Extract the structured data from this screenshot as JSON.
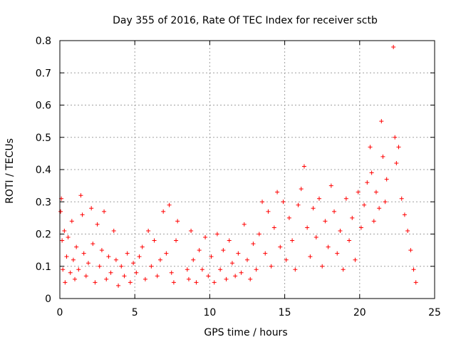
{
  "chart_data": {
    "type": "scatter",
    "title": "Day 355 of 2016, Rate Of TEC Index for receiver sctb",
    "xlabel": "GPS time / hours",
    "ylabel": "ROTI / TECUs",
    "xlim": [
      0,
      25
    ],
    "ylim": [
      0,
      0.8
    ],
    "xticks": [
      0,
      5,
      10,
      15,
      20,
      25
    ],
    "xtick_labels": [
      "0",
      "5",
      "10",
      "15",
      "20",
      "25"
    ],
    "yticks": [
      0,
      0.1,
      0.2,
      0.3,
      0.4,
      0.5,
      0.6,
      0.7,
      0.8
    ],
    "ytick_labels": [
      "0",
      "0.1",
      "0.2",
      "0.3",
      "0.4",
      "0.5",
      "0.6",
      "0.7",
      "0.8"
    ],
    "grid": true,
    "marker": "plus",
    "color": "#ff0000",
    "series": [
      {
        "name": "ROTI",
        "points": [
          [
            0.05,
            0.27
          ],
          [
            0.1,
            0.31
          ],
          [
            0.15,
            0.18
          ],
          [
            0.2,
            0.09
          ],
          [
            0.3,
            0.21
          ],
          [
            0.35,
            0.05
          ],
          [
            0.45,
            0.13
          ],
          [
            0.55,
            0.19
          ],
          [
            0.7,
            0.08
          ],
          [
            0.8,
            0.24
          ],
          [
            0.9,
            0.12
          ],
          [
            1.0,
            0.06
          ],
          [
            1.1,
            0.16
          ],
          [
            1.25,
            0.09
          ],
          [
            1.4,
            0.32
          ],
          [
            1.5,
            0.26
          ],
          [
            1.6,
            0.14
          ],
          [
            1.75,
            0.07
          ],
          [
            1.9,
            0.11
          ],
          [
            2.1,
            0.28
          ],
          [
            2.2,
            0.17
          ],
          [
            2.35,
            0.05
          ],
          [
            2.5,
            0.23
          ],
          [
            2.65,
            0.1
          ],
          [
            2.8,
            0.15
          ],
          [
            2.95,
            0.27
          ],
          [
            3.1,
            0.06
          ],
          [
            3.25,
            0.13
          ],
          [
            3.4,
            0.08
          ],
          [
            3.6,
            0.21
          ],
          [
            3.75,
            0.12
          ],
          [
            3.9,
            0.04
          ],
          [
            4.1,
            0.1
          ],
          [
            4.3,
            0.07
          ],
          [
            4.5,
            0.14
          ],
          [
            4.7,
            0.05
          ],
          [
            4.9,
            0.11
          ],
          [
            5.1,
            0.08
          ],
          [
            5.3,
            0.13
          ],
          [
            5.5,
            0.16
          ],
          [
            5.7,
            0.06
          ],
          [
            5.9,
            0.21
          ],
          [
            6.1,
            0.1
          ],
          [
            6.3,
            0.18
          ],
          [
            6.5,
            0.07
          ],
          [
            6.7,
            0.12
          ],
          [
            6.9,
            0.27
          ],
          [
            7.1,
            0.14
          ],
          [
            7.3,
            0.29
          ],
          [
            7.45,
            0.08
          ],
          [
            7.6,
            0.05
          ],
          [
            7.75,
            0.18
          ],
          [
            7.85,
            0.24
          ],
          [
            8.5,
            0.09
          ],
          [
            8.6,
            0.06
          ],
          [
            8.75,
            0.21
          ],
          [
            8.9,
            0.12
          ],
          [
            9.1,
            0.05
          ],
          [
            9.3,
            0.15
          ],
          [
            9.5,
            0.09
          ],
          [
            9.7,
            0.19
          ],
          [
            9.9,
            0.07
          ],
          [
            10.1,
            0.13
          ],
          [
            10.3,
            0.05
          ],
          [
            10.5,
            0.2
          ],
          [
            10.7,
            0.09
          ],
          [
            10.9,
            0.15
          ],
          [
            11.1,
            0.06
          ],
          [
            11.3,
            0.18
          ],
          [
            11.5,
            0.11
          ],
          [
            11.7,
            0.07
          ],
          [
            11.9,
            0.14
          ],
          [
            12.1,
            0.08
          ],
          [
            12.3,
            0.23
          ],
          [
            12.5,
            0.12
          ],
          [
            12.7,
            0.06
          ],
          [
            12.9,
            0.17
          ],
          [
            13.1,
            0.09
          ],
          [
            13.3,
            0.2
          ],
          [
            13.5,
            0.3
          ],
          [
            13.7,
            0.14
          ],
          [
            13.9,
            0.27
          ],
          [
            14.1,
            0.1
          ],
          [
            14.3,
            0.22
          ],
          [
            14.5,
            0.33
          ],
          [
            14.7,
            0.16
          ],
          [
            14.9,
            0.3
          ],
          [
            15.1,
            0.12
          ],
          [
            15.3,
            0.25
          ],
          [
            15.5,
            0.18
          ],
          [
            15.7,
            0.09
          ],
          [
            15.9,
            0.29
          ],
          [
            16.1,
            0.34
          ],
          [
            16.3,
            0.41
          ],
          [
            16.5,
            0.22
          ],
          [
            16.7,
            0.13
          ],
          [
            16.9,
            0.28
          ],
          [
            17.1,
            0.19
          ],
          [
            17.3,
            0.31
          ],
          [
            17.5,
            0.1
          ],
          [
            17.7,
            0.24
          ],
          [
            17.9,
            0.16
          ],
          [
            18.1,
            0.35
          ],
          [
            18.3,
            0.27
          ],
          [
            18.5,
            0.14
          ],
          [
            18.7,
            0.21
          ],
          [
            18.9,
            0.09
          ],
          [
            19.1,
            0.31
          ],
          [
            19.3,
            0.18
          ],
          [
            19.5,
            0.25
          ],
          [
            19.7,
            0.12
          ],
          [
            19.9,
            0.33
          ],
          [
            20.1,
            0.22
          ],
          [
            20.3,
            0.29
          ],
          [
            20.5,
            0.36
          ],
          [
            20.7,
            0.47
          ],
          [
            20.8,
            0.39
          ],
          [
            20.95,
            0.24
          ],
          [
            21.1,
            0.33
          ],
          [
            21.3,
            0.28
          ],
          [
            21.45,
            0.55
          ],
          [
            21.55,
            0.44
          ],
          [
            21.7,
            0.3
          ],
          [
            21.8,
            0.37
          ],
          [
            22.25,
            0.78
          ],
          [
            22.35,
            0.5
          ],
          [
            22.45,
            0.42
          ],
          [
            22.6,
            0.47
          ],
          [
            22.8,
            0.31
          ],
          [
            23.0,
            0.26
          ],
          [
            23.2,
            0.21
          ],
          [
            23.4,
            0.15
          ],
          [
            23.6,
            0.09
          ],
          [
            23.75,
            0.05
          ]
        ]
      }
    ]
  }
}
